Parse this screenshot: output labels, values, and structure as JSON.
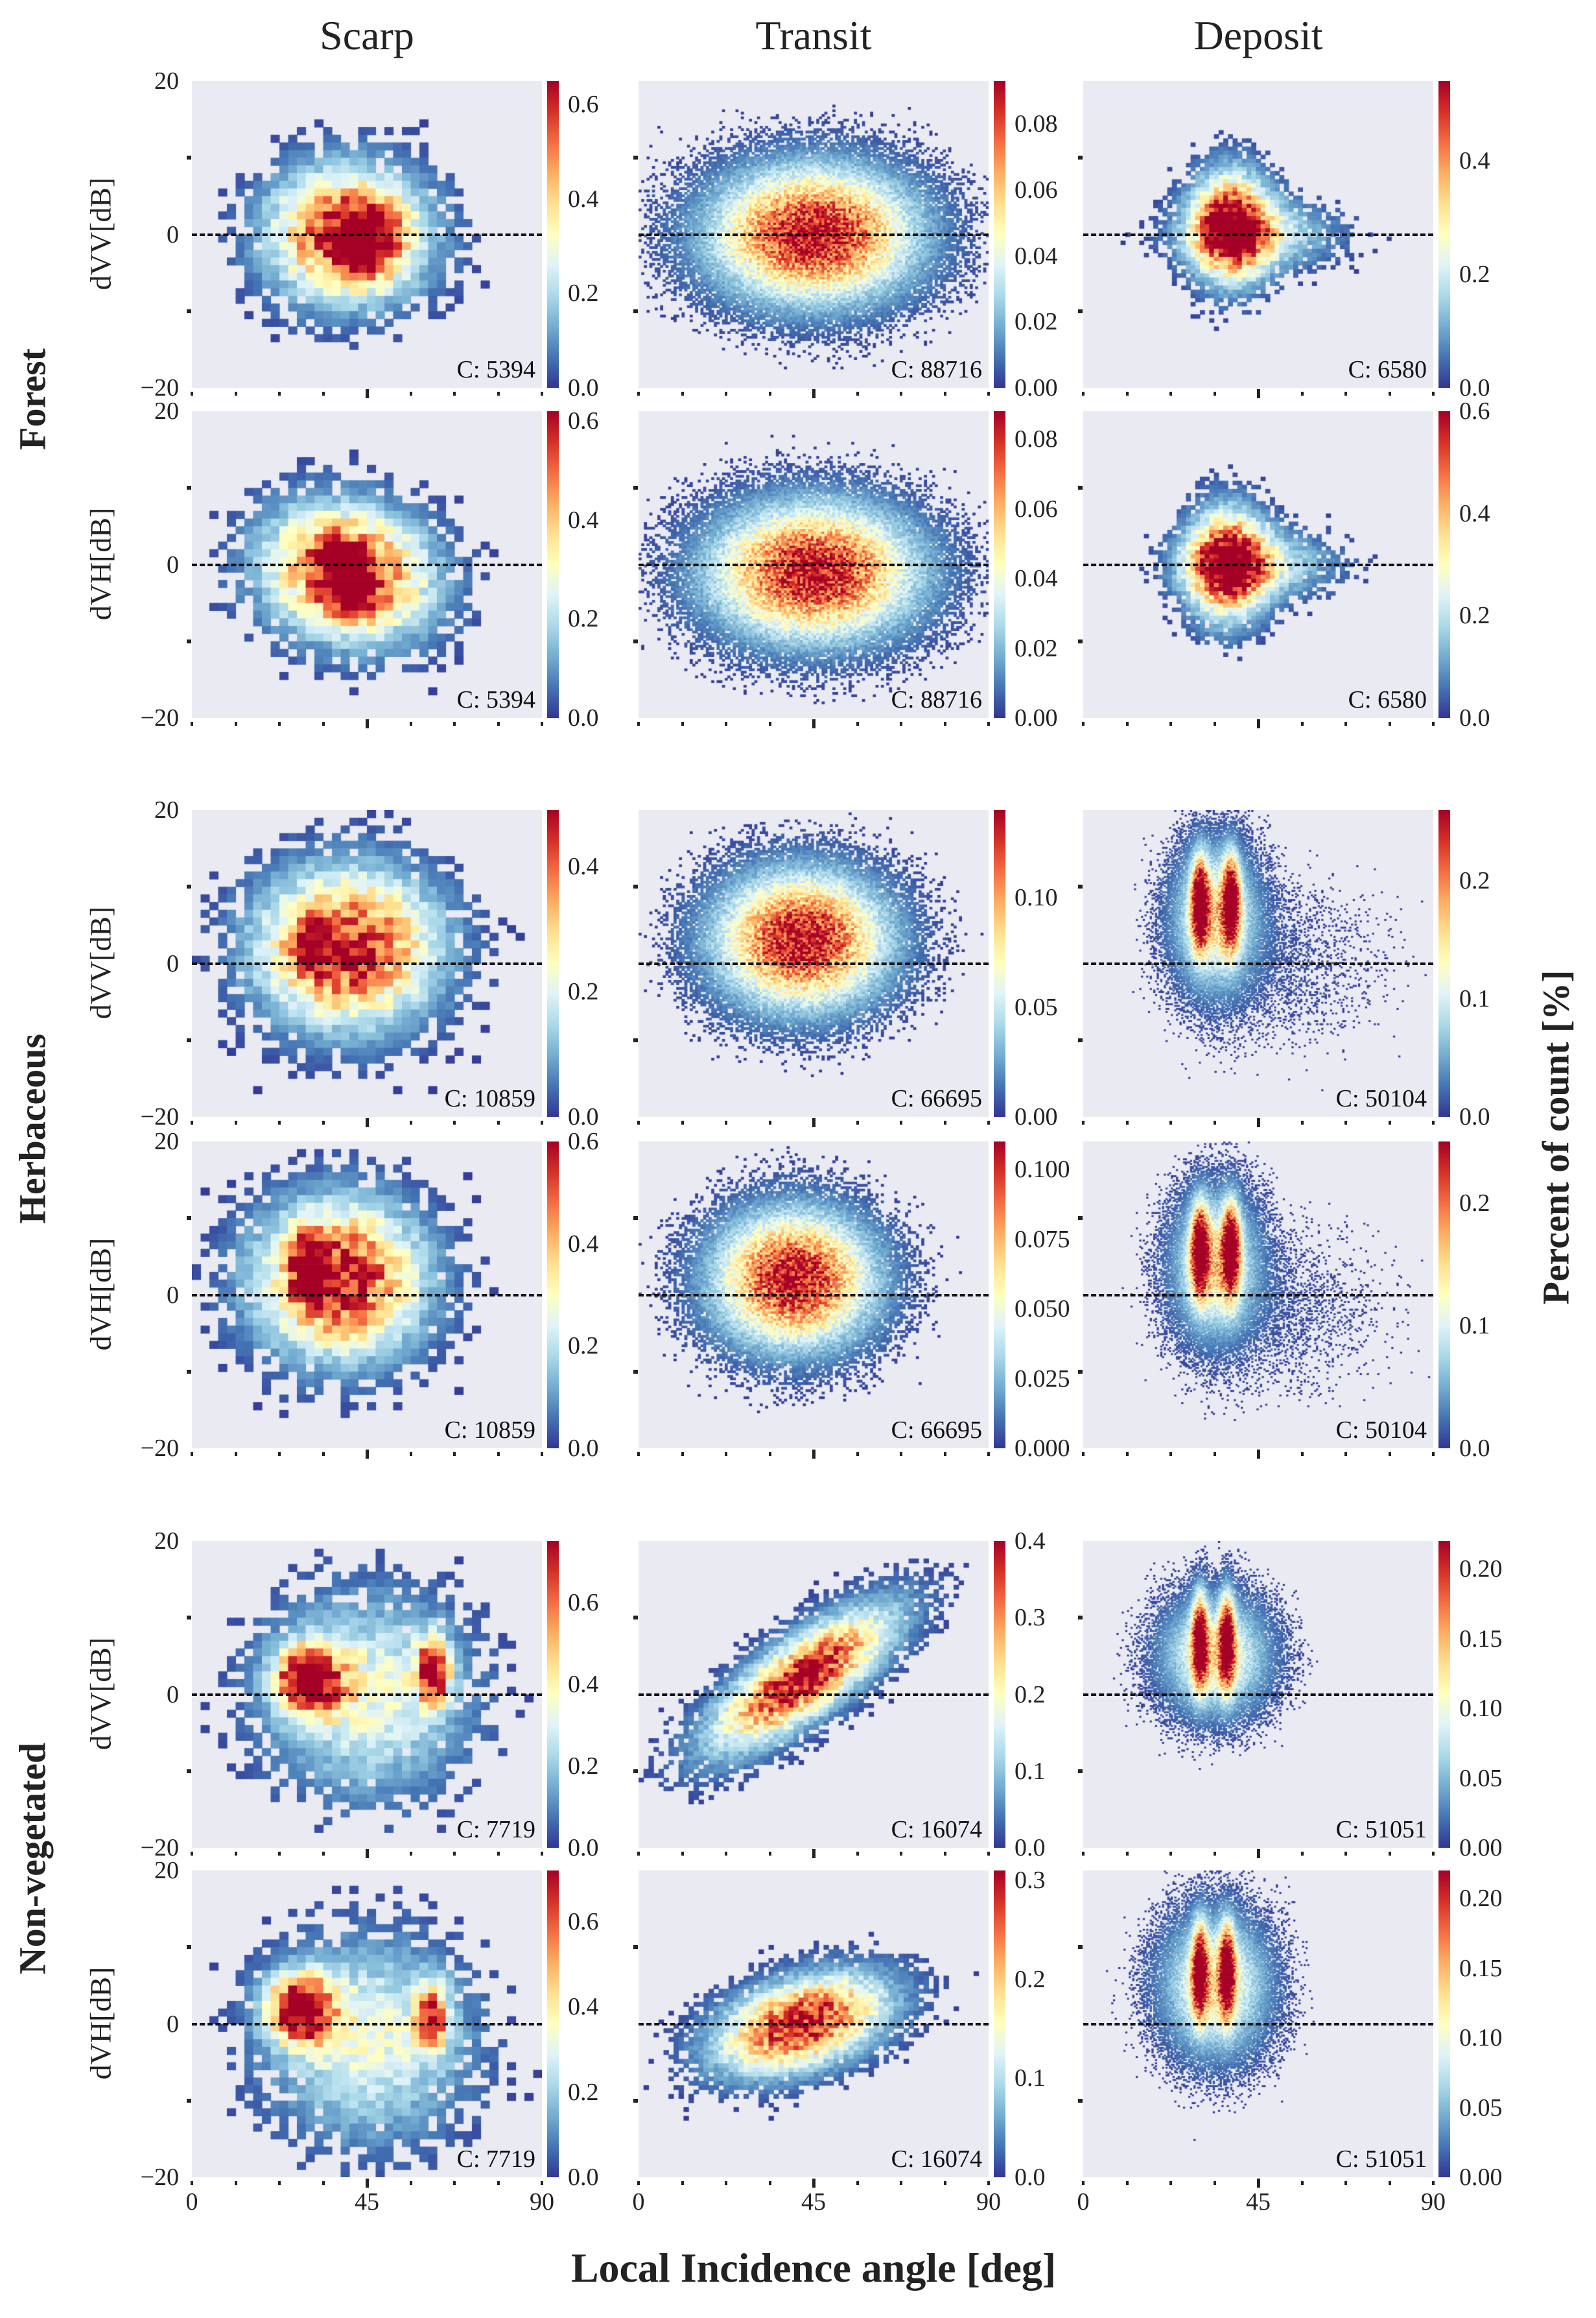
{
  "figure": {
    "column_titles": [
      "Scarp",
      "Transit",
      "Deposit"
    ],
    "group_labels": [
      "Forest",
      "Herbaceous",
      "Non-vegetated"
    ],
    "x_label": "Local Incidence angle [deg]",
    "colorbar_label": "Percent of count [%]"
  },
  "chart_data": {
    "type": "heatmap",
    "title": "",
    "xlabel": "Local Incidence angle [deg]",
    "xlim": [
      0,
      90
    ],
    "x_tick_labels": [
      "0",
      "45",
      "90"
    ],
    "x_ticks": [
      0,
      45,
      90
    ],
    "ylim": [
      -20,
      20
    ],
    "y_tick_labels": [
      "20",
      "0",
      "−20"
    ],
    "y_ticks": [
      20,
      0,
      -20
    ],
    "reference_line_y": 0,
    "colormap": [
      "#313695",
      "#4575b4",
      "#74add1",
      "#abd9e9",
      "#e0f3f8",
      "#ffffbf",
      "#fee090",
      "#fdae61",
      "#f46d43",
      "#d73027",
      "#a50026"
    ],
    "background_color": "#eaeaf2",
    "panels": [
      {
        "group": "Forest",
        "column": "Scarp",
        "ylabel": "dVV[dB]",
        "count_label": "C: 5394",
        "cbar_max": 0.65,
        "cbar_ticks": [
          "0.0",
          "0.2",
          "0.4",
          "0.6"
        ],
        "cbar_tick_values": [
          0,
          0.2,
          0.4,
          0.6
        ],
        "bins": [
          40,
          40
        ],
        "peaks": [
          [
            40,
            0,
            14,
            6,
            1
          ],
          [
            45,
            -1,
            5,
            3,
            0.5
          ]
        ],
        "tilt": 0,
        "spread": 1.6
      },
      {
        "group": "Forest",
        "column": "Transit",
        "ylabel": "dVV[dB]",
        "count_label": "C: 88716",
        "cbar_max": 0.093,
        "cbar_ticks": [
          "0.00",
          "0.02",
          "0.04",
          "0.06",
          "0.08"
        ],
        "cbar_tick_values": [
          0,
          0.02,
          0.04,
          0.06,
          0.08
        ],
        "bins": [
          130,
          130
        ],
        "peaks": [
          [
            45,
            0,
            18,
            6,
            1
          ]
        ],
        "tilt": 0,
        "spread": 1.9
      },
      {
        "group": "Forest",
        "column": "Deposit",
        "ylabel": "dVV[dB]",
        "count_label": "C: 6580",
        "cbar_max": 0.54,
        "cbar_ticks": [
          "0.0",
          "0.2",
          "0.4"
        ],
        "cbar_tick_values": [
          0,
          0.2,
          0.4
        ],
        "bins": [
          75,
          75
        ],
        "peaks": [
          [
            38,
            1,
            7,
            5,
            1
          ],
          [
            45,
            0,
            14,
            3,
            0.4
          ]
        ],
        "tilt": 0,
        "spread": 1.6
      },
      {
        "group": "Forest",
        "column": "Scarp",
        "ylabel": "dVH[dB]",
        "count_label": "C: 5394",
        "cbar_max": 0.62,
        "cbar_ticks": [
          "0.0",
          "0.2",
          "0.4",
          "0.6"
        ],
        "cbar_tick_values": [
          0,
          0.2,
          0.4,
          0.6
        ],
        "bins": [
          40,
          40
        ],
        "peaks": [
          [
            40,
            -1,
            15,
            6,
            1
          ],
          [
            40,
            -2,
            4,
            3,
            0.6
          ]
        ],
        "tilt": -0.05,
        "spread": 1.6
      },
      {
        "group": "Forest",
        "column": "Transit",
        "ylabel": "dVH[dB]",
        "count_label": "C: 88716",
        "cbar_max": 0.088,
        "cbar_ticks": [
          "0.00",
          "0.02",
          "0.04",
          "0.06",
          "0.08"
        ],
        "cbar_tick_values": [
          0,
          0.02,
          0.04,
          0.06,
          0.08
        ],
        "bins": [
          130,
          130
        ],
        "peaks": [
          [
            45,
            -1,
            18,
            6,
            1
          ]
        ],
        "tilt": 0,
        "spread": 1.9
      },
      {
        "group": "Forest",
        "column": "Deposit",
        "ylabel": "dVH[dB]",
        "count_label": "C: 6580",
        "cbar_max": 0.6,
        "cbar_ticks": [
          "0.0",
          "0.2",
          "0.4",
          "0.6"
        ],
        "cbar_tick_values": [
          0,
          0.2,
          0.4,
          0.6
        ],
        "bins": [
          75,
          75
        ],
        "peaks": [
          [
            37,
            0,
            7,
            5,
            1
          ],
          [
            45,
            0,
            14,
            3,
            0.4
          ]
        ],
        "tilt": 0,
        "spread": 1.6
      },
      {
        "group": "Herbaceous",
        "column": "Scarp",
        "ylabel": "dVV[dB]",
        "count_label": "C: 10859",
        "cbar_max": 0.49,
        "cbar_ticks": [
          "0.0",
          "0.2",
          "0.4"
        ],
        "cbar_tick_values": [
          0,
          0.2,
          0.4
        ],
        "bins": [
          40,
          40
        ],
        "peaks": [
          [
            40,
            2,
            16,
            7,
            1
          ],
          [
            30,
            2,
            3,
            2,
            0.5
          ]
        ],
        "tilt": 0,
        "spread": 1.7
      },
      {
        "group": "Herbaceous",
        "column": "Transit",
        "ylabel": "dVV[dB]",
        "count_label": "C: 66695",
        "cbar_max": 0.14,
        "cbar_ticks": [
          "0.00",
          "0.05",
          "0.10"
        ],
        "cbar_tick_values": [
          0,
          0.05,
          0.1
        ],
        "bins": [
          130,
          130
        ],
        "peaks": [
          [
            42,
            3,
            15,
            6,
            1
          ]
        ],
        "tilt": 0,
        "spread": 1.9
      },
      {
        "group": "Herbaceous",
        "column": "Deposit",
        "ylabel": "dVV[dB]",
        "count_label": "C: 50104",
        "cbar_max": 0.26,
        "cbar_ticks": [
          "0.0",
          "0.1",
          "0.2"
        ],
        "cbar_tick_values": [
          0,
          0.1,
          0.2
        ],
        "bins": [
          200,
          200
        ],
        "peaks": [
          [
            30,
            8,
            1.5,
            4,
            1
          ],
          [
            38,
            8,
            1.5,
            4,
            1
          ],
          [
            34,
            6,
            7,
            6,
            0.6
          ],
          [
            50,
            0,
            18,
            7,
            0.05
          ]
        ],
        "tilt": 0,
        "spread": 2.2
      },
      {
        "group": "Herbaceous",
        "column": "Scarp",
        "ylabel": "dVH[dB]",
        "count_label": "C: 10859",
        "cbar_max": 0.6,
        "cbar_ticks": [
          "0.0",
          "0.2",
          "0.4",
          "0.6"
        ],
        "cbar_tick_values": [
          0,
          0.2,
          0.4,
          0.6
        ],
        "bins": [
          40,
          40
        ],
        "peaks": [
          [
            38,
            2,
            15,
            7,
            1
          ],
          [
            30,
            4,
            3,
            3,
            0.5
          ]
        ],
        "tilt": 0,
        "spread": 1.7
      },
      {
        "group": "Herbaceous",
        "column": "Transit",
        "ylabel": "dVH[dB]",
        "count_label": "C: 66695",
        "cbar_max": 0.11,
        "cbar_ticks": [
          "0.000",
          "0.025",
          "0.050",
          "0.075",
          "0.100"
        ],
        "cbar_tick_values": [
          0,
          0.025,
          0.05,
          0.075,
          0.1
        ],
        "bins": [
          130,
          130
        ],
        "peaks": [
          [
            40,
            2,
            14,
            6,
            1
          ]
        ],
        "tilt": 0,
        "spread": 1.9
      },
      {
        "group": "Herbaceous",
        "column": "Deposit",
        "ylabel": "dVH[dB]",
        "count_label": "C: 50104",
        "cbar_max": 0.25,
        "cbar_ticks": [
          "0.0",
          "0.1",
          "0.2"
        ],
        "cbar_tick_values": [
          0,
          0.1,
          0.2
        ],
        "bins": [
          200,
          200
        ],
        "peaks": [
          [
            30,
            6,
            1.5,
            4,
            1
          ],
          [
            38,
            6,
            1.5,
            4,
            1
          ],
          [
            34,
            4,
            7,
            6,
            0.6
          ],
          [
            50,
            -2,
            18,
            7,
            0.05
          ]
        ],
        "tilt": 0,
        "spread": 2.2
      },
      {
        "group": "Non-vegetated",
        "column": "Scarp",
        "ylabel": "dVV[dB]",
        "count_label": "C: 7719",
        "cbar_max": 0.75,
        "cbar_ticks": [
          "0.0",
          "0.2",
          "0.4",
          "0.6"
        ],
        "cbar_tick_values": [
          0,
          0.2,
          0.4,
          0.6
        ],
        "bins": [
          40,
          40
        ],
        "peaks": [
          [
            30,
            2,
            6,
            3,
            1
          ],
          [
            62,
            3,
            3,
            3,
            0.9
          ],
          [
            45,
            0,
            18,
            9,
            0.5
          ]
        ],
        "tilt": 0,
        "spread": 1.5
      },
      {
        "group": "Non-vegetated",
        "column": "Transit",
        "ylabel": "dVV[dB]",
        "count_label": "C: 16074",
        "cbar_max": 0.4,
        "cbar_ticks": [
          "0.0",
          "0.1",
          "0.2",
          "0.3",
          "0.4"
        ],
        "cbar_tick_values": [
          0,
          0.1,
          0.2,
          0.3,
          0.4
        ],
        "bins": [
          70,
          70
        ],
        "peaks": [
          [
            42,
            2,
            16,
            4,
            1
          ]
        ],
        "tilt": 0.3,
        "spread": 1.8
      },
      {
        "group": "Non-vegetated",
        "column": "Deposit",
        "ylabel": "dVV[dB]",
        "count_label": "C: 51051",
        "cbar_max": 0.22,
        "cbar_ticks": [
          "0.00",
          "0.05",
          "0.10",
          "0.15",
          "0.20"
        ],
        "cbar_tick_values": [
          0,
          0.05,
          0.1,
          0.15,
          0.2
        ],
        "bins": [
          200,
          200
        ],
        "peaks": [
          [
            30,
            7,
            1.3,
            4,
            1
          ],
          [
            37,
            7,
            1.3,
            4,
            1
          ],
          [
            34,
            5,
            9,
            5,
            0.6
          ]
        ],
        "tilt": 0,
        "spread": 2.1
      },
      {
        "group": "Non-vegetated",
        "column": "Scarp",
        "ylabel": "dVH[dB]",
        "count_label": "C: 7719",
        "cbar_max": 0.72,
        "cbar_ticks": [
          "0.0",
          "0.2",
          "0.4",
          "0.6"
        ],
        "cbar_tick_values": [
          0,
          0.2,
          0.4,
          0.6
        ],
        "bins": [
          40,
          40
        ],
        "peaks": [
          [
            28,
            2,
            6,
            3,
            1
          ],
          [
            62,
            1,
            3,
            3,
            0.7
          ],
          [
            45,
            -2,
            18,
            9,
            0.5
          ]
        ],
        "tilt": 0,
        "spread": 1.5
      },
      {
        "group": "Non-vegetated",
        "column": "Transit",
        "ylabel": "dVH[dB]",
        "count_label": "C: 16074",
        "cbar_max": 0.31,
        "cbar_ticks": [
          "0.0",
          "0.1",
          "0.2",
          "0.3"
        ],
        "cbar_tick_values": [
          0,
          0.1,
          0.2,
          0.3
        ],
        "bins": [
          70,
          70
        ],
        "peaks": [
          [
            42,
            0,
            15,
            4,
            1
          ]
        ],
        "tilt": 0.12,
        "spread": 1.8
      },
      {
        "group": "Non-vegetated",
        "column": "Deposit",
        "ylabel": "dVH[dB]",
        "count_label": "C: 51051",
        "cbar_max": 0.22,
        "cbar_ticks": [
          "0.00",
          "0.05",
          "0.10",
          "0.15",
          "0.20"
        ],
        "cbar_tick_values": [
          0,
          0.05,
          0.1,
          0.15,
          0.2
        ],
        "bins": [
          200,
          200
        ],
        "peaks": [
          [
            30,
            7,
            1.3,
            4,
            1
          ],
          [
            37,
            7,
            1.3,
            4,
            1
          ],
          [
            34,
            5,
            9,
            6,
            0.6
          ]
        ],
        "tilt": 0,
        "spread": 2.1
      }
    ]
  }
}
